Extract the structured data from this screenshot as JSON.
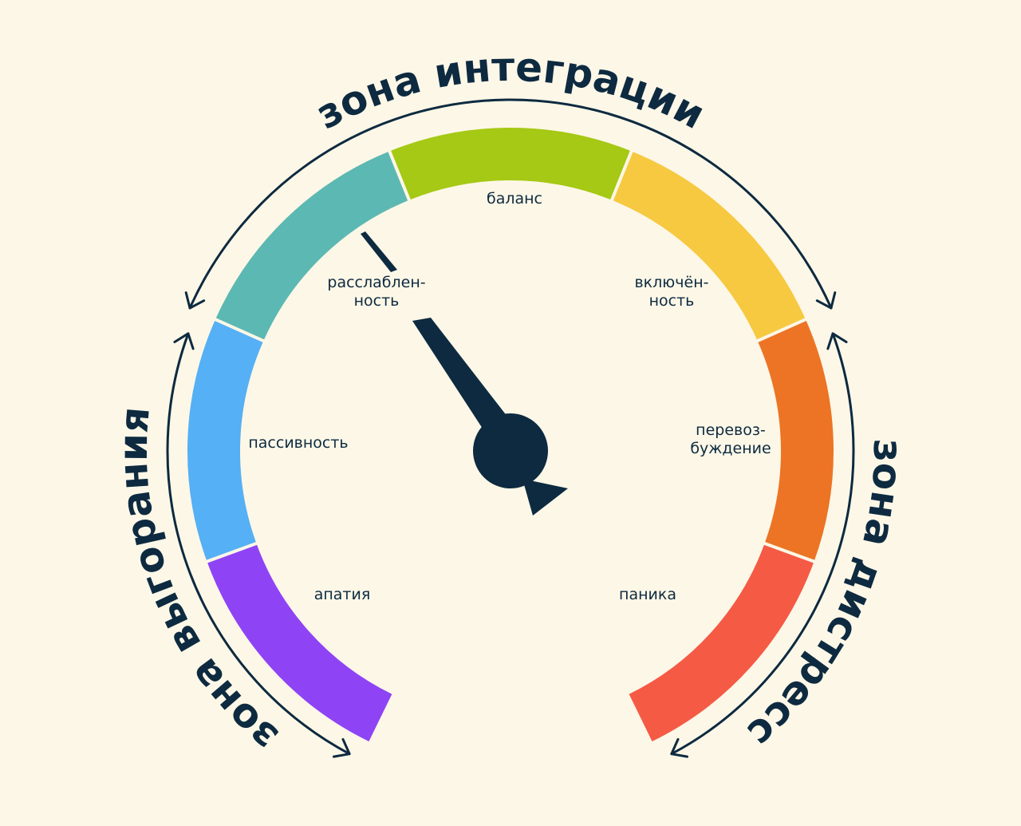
{
  "zones": {
    "integration": "зона интеграции",
    "burnout": "зона выгорания",
    "distress": "зона дистресс"
  },
  "segments": [
    {
      "lines": [
        "апатия"
      ]
    },
    {
      "lines": [
        "пассивность"
      ]
    },
    {
      "lines": [
        "расслаблен-",
        "ность"
      ]
    },
    {
      "lines": [
        "баланс"
      ]
    },
    {
      "lines": [
        "включён-",
        "ность"
      ]
    },
    {
      "lines": [
        "перевоз-",
        "буждение"
      ]
    },
    {
      "lines": [
        "паника"
      ]
    }
  ]
}
